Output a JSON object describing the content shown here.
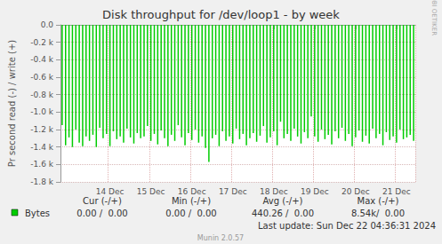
{
  "chart_data": {
    "type": "bar",
    "title": "Disk throughput for /dev/loop1 - by week",
    "y_label": "Pr second read (-) / write (+)",
    "categories": [
      null,
      null,
      null,
      null,
      null,
      null,
      null,
      null,
      null,
      null,
      null,
      null,
      null,
      null,
      "14 Dec",
      null,
      null,
      null,
      null,
      null,
      null,
      null,
      null,
      null,
      null,
      null,
      "15 Dec",
      null,
      null,
      null,
      null,
      null,
      null,
      null,
      null,
      null,
      null,
      null,
      "16 Dec",
      null,
      null,
      null,
      null,
      null,
      null,
      null,
      null,
      null,
      null,
      null,
      "17 Dec",
      null,
      null,
      null,
      null,
      null,
      null,
      null,
      null,
      null,
      null,
      null,
      "18 Dec",
      null,
      null,
      null,
      null,
      null,
      null,
      null,
      null,
      null,
      null,
      null,
      "19 Dec",
      null,
      null,
      null,
      null,
      null,
      null,
      null,
      null,
      null,
      null,
      null,
      "20 Dec",
      null,
      null,
      null,
      null,
      null,
      null,
      null,
      null,
      null,
      null,
      null,
      "21 Dec",
      null,
      null,
      null,
      null,
      null
    ],
    "series": [
      {
        "name": "Bytes",
        "color": "#00cc00",
        "values": [
          -1150,
          -1380,
          -1290,
          -1400,
          -1200,
          -1350,
          -1390,
          -1280,
          -1330,
          -1260,
          -1400,
          -1180,
          -1300,
          -1250,
          -1390,
          -1220,
          -1310,
          -1280,
          -1350,
          -1190,
          -1290,
          -1360,
          -1240,
          -1300,
          -1280,
          -1160,
          -1330,
          -1250,
          -1370,
          -1210,
          -1300,
          -1390,
          -1260,
          -1330,
          -1150,
          -1290,
          -1380,
          -1240,
          -1320,
          -1200,
          -1350,
          -1280,
          -1410,
          -1570,
          -1300,
          -1260,
          -1390,
          -1220,
          -1330,
          -1280,
          -1360,
          -1190,
          -1310,
          -1250,
          -1380,
          -1300,
          -1240,
          -1340,
          -1270,
          -1160,
          -1350,
          -1290,
          -1220,
          -1380,
          -1110,
          -1300,
          -1250,
          -1330,
          -1190,
          -1280,
          -1360,
          -1230,
          -1300,
          -1050,
          -1280,
          -1340,
          -1200,
          -1310,
          -1260,
          -1370,
          -1220,
          -1300,
          -1180,
          -1330,
          -1250,
          -1390,
          -1290,
          -1210,
          -1340,
          -1270,
          -1360,
          -1190,
          -1300,
          -1250,
          -1380,
          -1230,
          -1320,
          -1280,
          -1350,
          -1200,
          -1310,
          -1290,
          -1260,
          -1330
        ]
      }
    ],
    "ylim": [
      -1800,
      0
    ],
    "yticks": [
      {
        "value": -1800,
        "label": "-1.8 k"
      },
      {
        "value": -1600,
        "label": "-1.6 k"
      },
      {
        "value": -1400,
        "label": "-1.4 k"
      },
      {
        "value": -1200,
        "label": "-1.2 k"
      },
      {
        "value": -1000,
        "label": "-1.0 k"
      },
      {
        "value": -800,
        "label": "-0.8 k"
      },
      {
        "value": -600,
        "label": "-0.6 k"
      },
      {
        "value": -400,
        "label": "-0.4 k"
      },
      {
        "value": -200,
        "label": "-0.2 k"
      },
      {
        "value": 0,
        "label": "0.0"
      }
    ],
    "grid": true,
    "stats": {
      "headers": [
        "Cur (-/+)",
        "Min (-/+)",
        "Avg (-/+)",
        "Max (-/+)"
      ],
      "values": [
        "0.00 /  0.00",
        "0.00 /  0.00",
        "440.26 /  0.00",
        "8.54k/  0.00"
      ]
    },
    "watermark": "RRDTOOL / TOBI OETIKER",
    "footer": "Last update: Sun Dec 22 04:36:31 2024",
    "credit": "Munin 2.0.57"
  }
}
